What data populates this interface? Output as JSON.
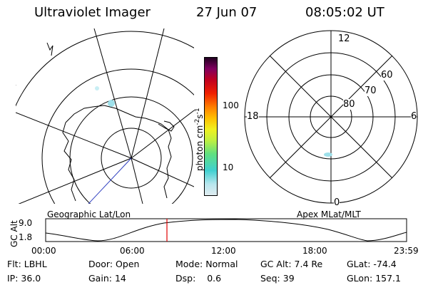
{
  "header": {
    "instrument": "Ultraviolet Imager",
    "date": "27 Jun 07",
    "time": "08:05:02 UT"
  },
  "maps": {
    "left_label": "Geographic Lat/Lon",
    "right_label": "Apex MLat/MLT",
    "right_lat_labels": [
      "80",
      "70",
      "60"
    ],
    "right_mlt_labels": {
      "top": "12",
      "left": "18",
      "right": "6",
      "bottom": "0"
    }
  },
  "colorbar": {
    "label": "photon cm",
    "label_sup1": "-2",
    "label_mid": "s",
    "label_sup2": "-1",
    "tick_labels": [
      "100",
      "10"
    ]
  },
  "altitude_plot": {
    "ylabel": "GC Alt",
    "y_ticks": [
      "9.0",
      "1.8"
    ],
    "x_ticks": [
      "00:00",
      "06:00",
      "12:00",
      "18:00",
      "23:59"
    ],
    "current_time_fraction": 0.336
  },
  "status": {
    "flt_label": "Flt:",
    "flt_value": "LBHL",
    "ip_label": "IP:",
    "ip_value": "36.0",
    "door_label": "Door:",
    "door_value": "Open",
    "gain_label": "Gain:",
    "gain_value": "14",
    "mode_label": "Mode:",
    "mode_value": "Normal",
    "dsp_label": "Dsp:",
    "dsp_value": "0.6",
    "gcalt_label": "GC Alt:",
    "gcalt_value": "7.4 Re",
    "seq_label": "Seq:",
    "seq_value": "39",
    "glat_label": "GLat:",
    "glat_value": "-74.4",
    "glon_label": "GLon:",
    "glon_value": "157.1"
  },
  "colors": {
    "colorbar_stops": [
      "#d8e8f0",
      "#80e0e0",
      "#30c8c8",
      "#80e060",
      "#e8e820",
      "#ffa000",
      "#f05000",
      "#e00000",
      "#b00040",
      "#800060",
      "#400040",
      "#000000"
    ],
    "time_marker": "#e00000",
    "aurora": "#9ee0ea"
  }
}
